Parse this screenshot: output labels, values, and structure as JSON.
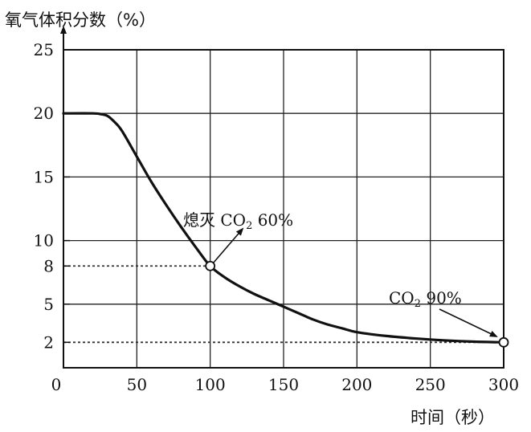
{
  "chart_data": {
    "type": "line",
    "ylabel": "氧气体积分数（%）",
    "xlabel": "时间（秒）",
    "xlim": [
      0,
      300
    ],
    "ylim": [
      0,
      25
    ],
    "x_ticks": [
      0,
      50,
      100,
      150,
      200,
      250,
      300
    ],
    "y_ticks": [
      2,
      5,
      8,
      10,
      15,
      20,
      25
    ],
    "grid": true,
    "series": [
      {
        "x": [
          0,
          20,
          25,
          30,
          35,
          40,
          50,
          60,
          70,
          80,
          90,
          100,
          110,
          120,
          130,
          140,
          150,
          160,
          170,
          180,
          190,
          200,
          220,
          240,
          260,
          280,
          300
        ],
        "values": [
          20,
          20,
          19.95,
          19.8,
          19.3,
          18.6,
          16.6,
          14.6,
          12.8,
          11.1,
          9.5,
          8,
          7.1,
          6.4,
          5.8,
          5.3,
          4.8,
          4.3,
          3.8,
          3.4,
          3.1,
          2.8,
          2.5,
          2.3,
          2.15,
          2.05,
          2
        ]
      }
    ],
    "points": [
      {
        "x": 100,
        "y": 8
      },
      {
        "x": 300,
        "y": 2
      }
    ],
    "guides": [
      {
        "y": 8,
        "x_to": 100
      },
      {
        "y": 2,
        "x_to": 300
      }
    ],
    "annotations": [
      {
        "text": "熄灭",
        "formula_main": "CO",
        "formula_sub": "2",
        "formula_rest": " 60%",
        "target": {
          "x": 100,
          "y": 8
        }
      },
      {
        "text": "",
        "formula_main": "CO",
        "formula_sub": "2",
        "formula_rest": " 90%",
        "target": {
          "x": 300,
          "y": 2
        }
      }
    ]
  }
}
